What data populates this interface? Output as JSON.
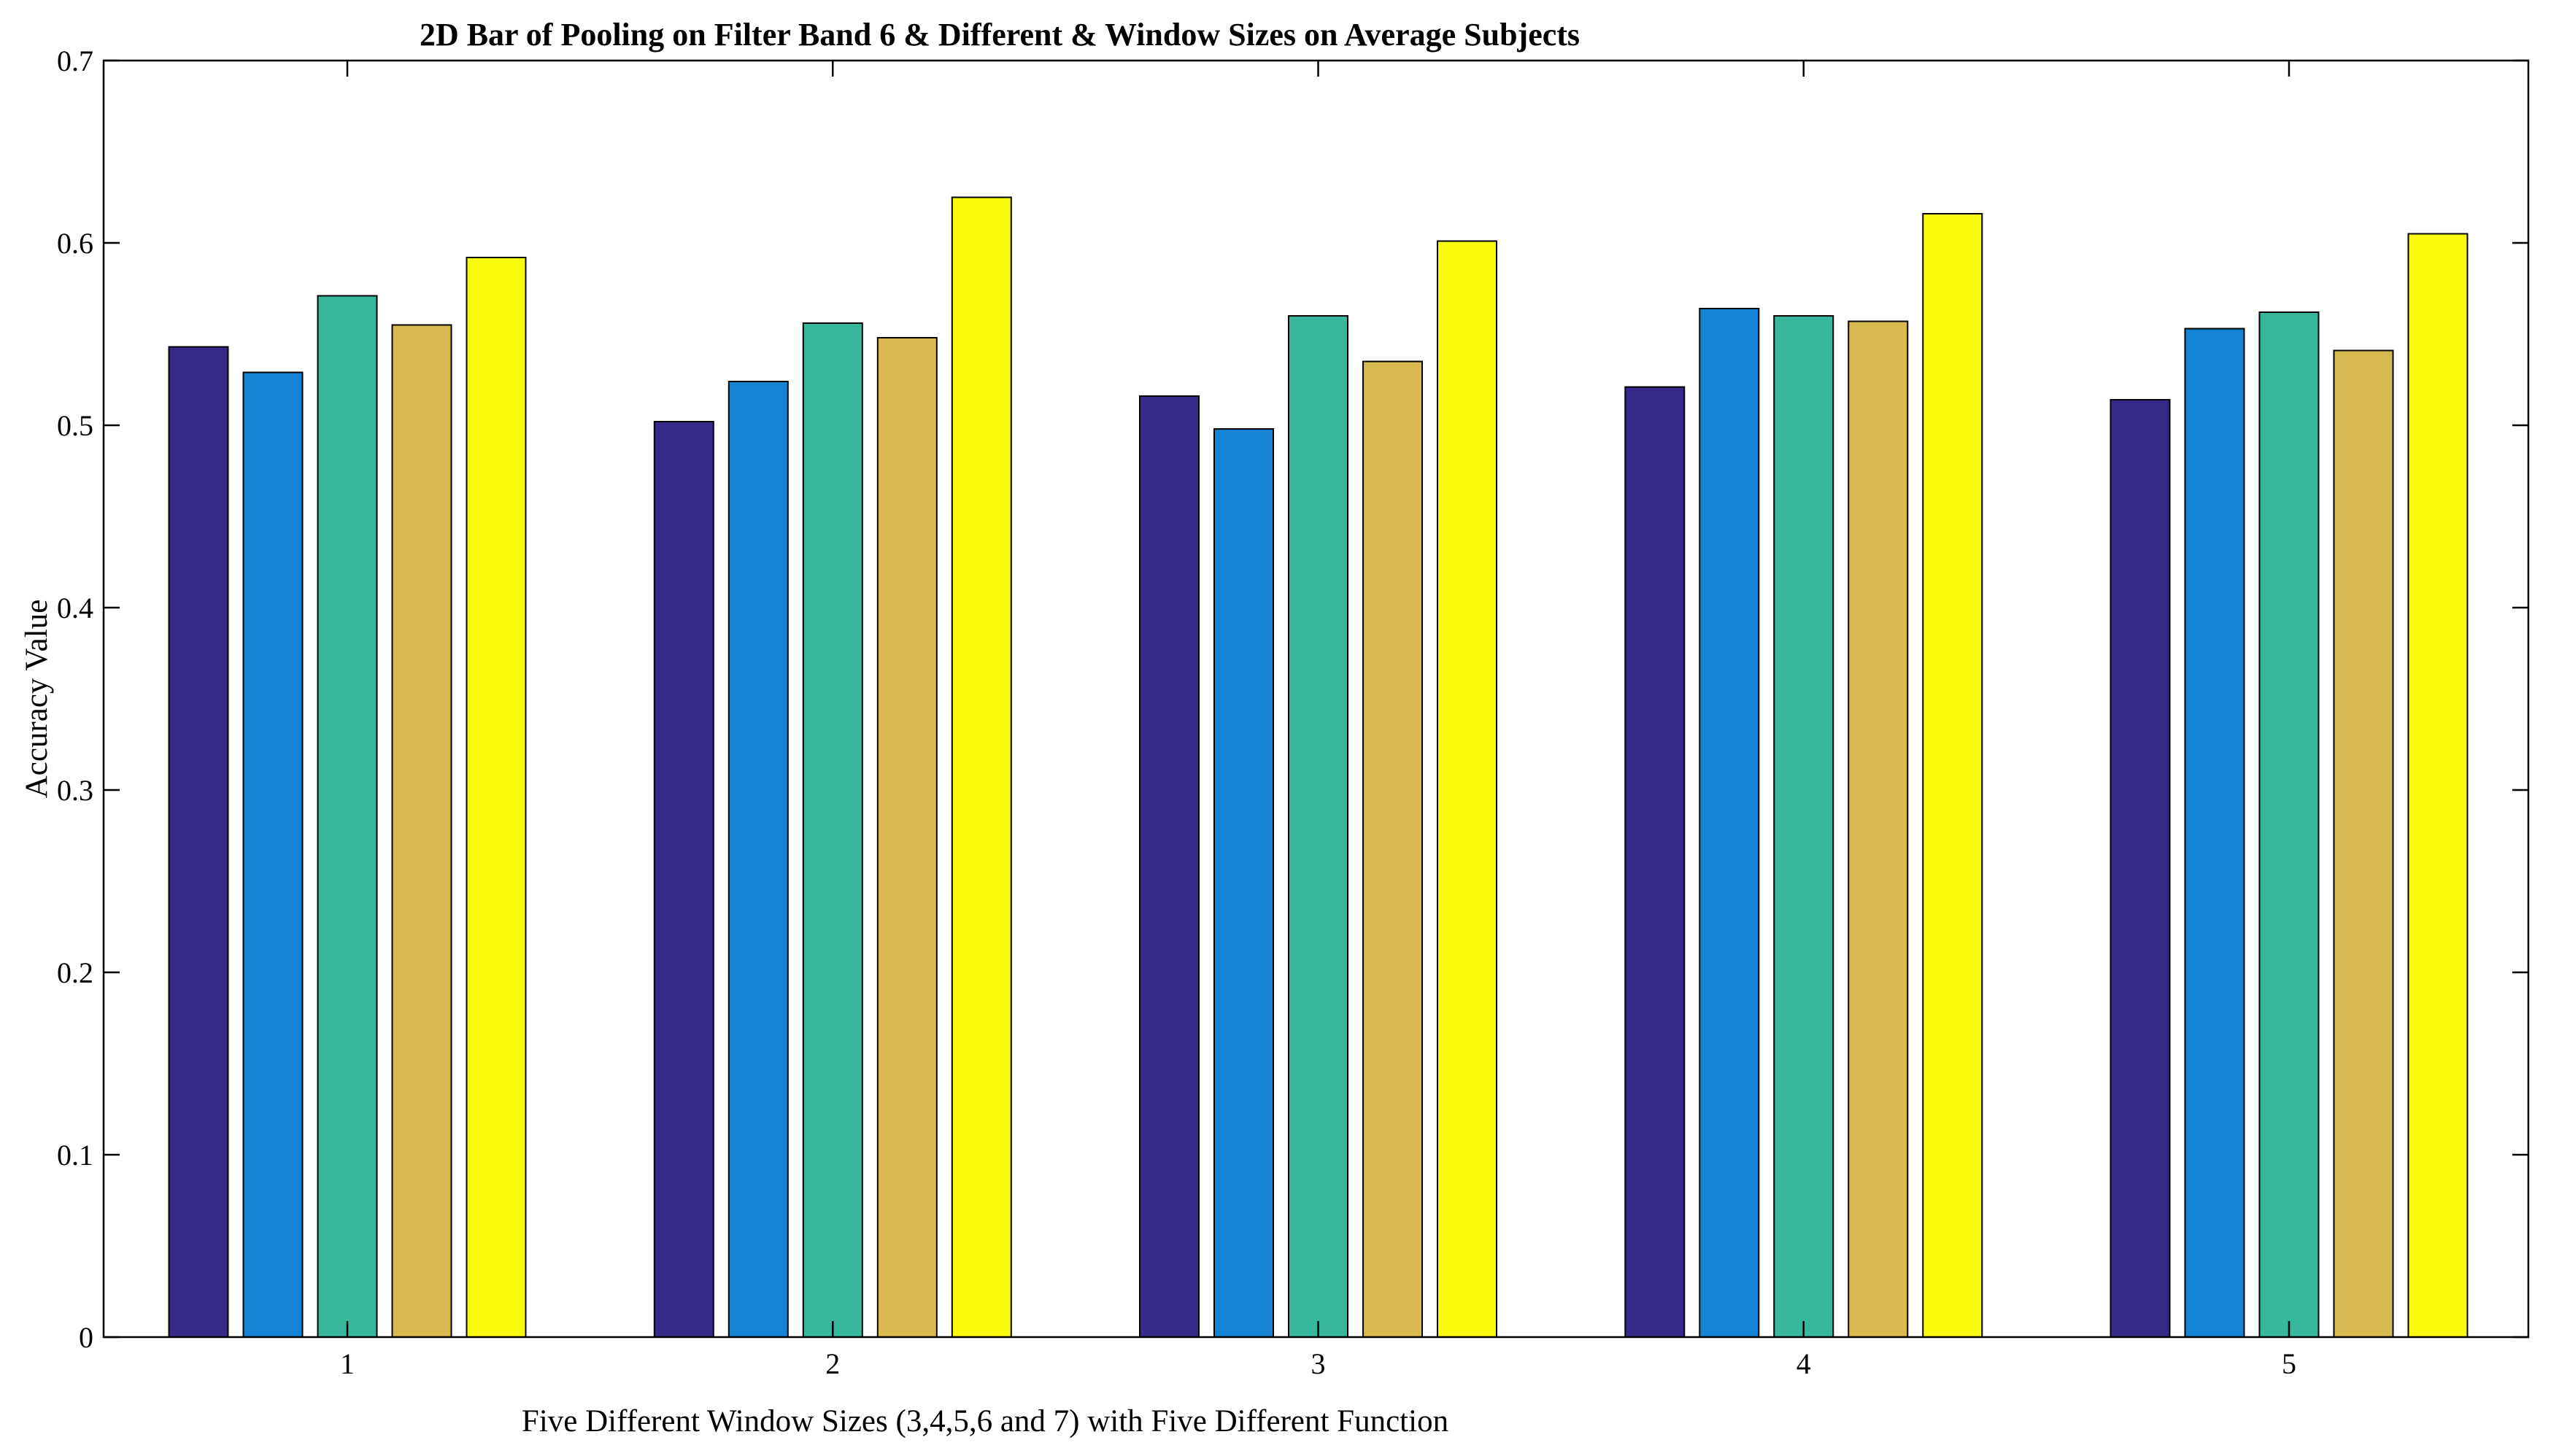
{
  "chart_data": {
    "type": "bar",
    "title": "2D Bar of Pooling on Filter Band 6 & Different & Window Sizes on Average Subjects",
    "xlabel": "Five Different Window Sizes (3,4,5,6 and 7) with Five Different Function",
    "ylabel": "Accuracy Value",
    "categories": [
      "1",
      "2",
      "3",
      "4",
      "5"
    ],
    "ylim": [
      0,
      0.7
    ],
    "yticks": [
      "0",
      "0.1",
      "0.2",
      "0.3",
      "0.4",
      "0.5",
      "0.6",
      "0.7"
    ],
    "grid": false,
    "legend": "none",
    "series": [
      {
        "color": "#352a87",
        "values": [
          0.543,
          0.502,
          0.516,
          0.521,
          0.514
        ]
      },
      {
        "color": "#1483d4",
        "values": [
          0.529,
          0.524,
          0.498,
          0.564,
          0.553
        ]
      },
      {
        "color": "#37b89d",
        "values": [
          0.571,
          0.556,
          0.56,
          0.56,
          0.562
        ]
      },
      {
        "color": "#d8b94f",
        "values": [
          0.555,
          0.548,
          0.535,
          0.557,
          0.541
        ]
      },
      {
        "color": "#f9fa0e",
        "values": [
          0.592,
          0.625,
          0.601,
          0.616,
          0.605
        ]
      }
    ]
  }
}
